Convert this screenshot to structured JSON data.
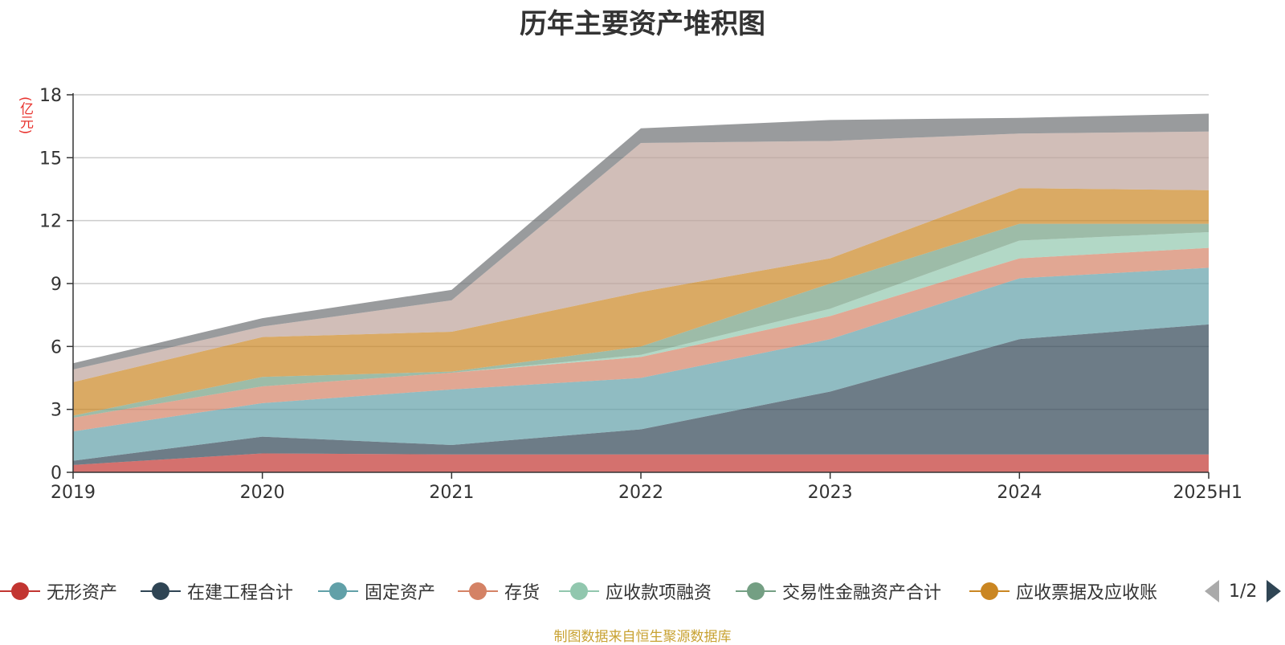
{
  "chart_data": {
    "type": "area",
    "stacked": true,
    "title": "历年主要资产堆积图",
    "ylabel": "(亿元)",
    "categories": [
      "2019",
      "2020",
      "2021",
      "2022",
      "2023",
      "2024",
      "2025H1"
    ],
    "ylim": [
      0,
      18
    ],
    "yticks": [
      0,
      3,
      6,
      9,
      12,
      15,
      18
    ],
    "grid": true,
    "legend_position": "bottom",
    "series": [
      {
        "name": "无形资产",
        "color": "#c23531",
        "values": [
          0.35,
          0.9,
          0.85,
          0.85,
          0.85,
          0.85,
          0.85
        ]
      },
      {
        "name": "在建工程合计",
        "color": "#2f4554",
        "values": [
          0.2,
          0.8,
          0.45,
          1.2,
          3.0,
          5.5,
          6.2
        ]
      },
      {
        "name": "固定资产",
        "color": "#61a0a8",
        "values": [
          1.4,
          1.6,
          2.65,
          2.45,
          2.5,
          2.9,
          2.7
        ]
      },
      {
        "name": "存货",
        "color": "#d48265",
        "values": [
          0.65,
          0.8,
          0.8,
          1.0,
          1.1,
          0.95,
          0.95
        ]
      },
      {
        "name": "应收款项融资",
        "color": "#91c7ae",
        "values": [
          0.0,
          0.0,
          0.0,
          0.1,
          0.35,
          0.85,
          0.75
        ]
      },
      {
        "name": "交易性金融资产合计",
        "color": "#749f83",
        "values": [
          0.1,
          0.45,
          0.05,
          0.4,
          1.2,
          0.8,
          0.4
        ]
      },
      {
        "name": "应收票据及应收账款",
        "color": "#ca8622",
        "values": [
          1.6,
          1.9,
          1.9,
          2.6,
          1.2,
          1.7,
          1.6
        ]
      },
      {
        "name": "",
        "color": "#bda29a",
        "values": [
          0.6,
          0.5,
          1.5,
          7.1,
          5.6,
          2.6,
          2.8
        ]
      },
      {
        "name": "",
        "color": "#6e7074",
        "values": [
          0.3,
          0.4,
          0.5,
          0.7,
          1.0,
          0.75,
          0.85
        ]
      }
    ]
  },
  "legend": {
    "items": [
      "无形资产",
      "在建工程合计",
      "固定资产",
      "存货",
      "应收款项融资",
      "交易性金融资产合计",
      "应收票据及应收账"
    ],
    "colors": [
      "#c23531",
      "#2f4554",
      "#61a0a8",
      "#d48265",
      "#91c7ae",
      "#749f83",
      "#ca8622"
    ],
    "page": "1/2",
    "prev_icon": "triangle-left-icon",
    "next_icon": "triangle-right-icon"
  },
  "source": "制图数据来自恒生聚源数据库"
}
